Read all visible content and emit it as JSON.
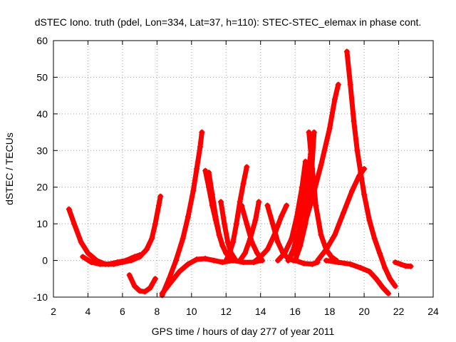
{
  "chart_data": {
    "type": "scatter",
    "title": "dSTEC Iono. truth (pdel, Lon=334, Lat=37, h=110): STEC-STEC_elemax in phase cont.",
    "xlabel": "GPS time / hours of day 277 of year 2011",
    "ylabel": "dSTEC  / TECUs",
    "xlim": [
      2,
      24
    ],
    "ylim": [
      -10,
      60
    ],
    "xticks": [
      2,
      4,
      6,
      8,
      10,
      12,
      14,
      16,
      18,
      20,
      22,
      24
    ],
    "yticks": [
      -10,
      0,
      10,
      20,
      30,
      40,
      50,
      60
    ],
    "grid": true,
    "marker": "+",
    "color": "#ff0000",
    "series": [
      {
        "x": [
          2.9,
          3.2,
          3.6,
          4.0,
          4.5,
          5.0,
          5.5,
          6.0,
          6.5,
          7.0,
          7.4,
          7.7,
          7.9,
          8.1,
          8.2
        ],
        "y": [
          14,
          10,
          5,
          2,
          0,
          -1,
          -1,
          -0.5,
          0,
          1,
          3,
          6,
          10,
          15,
          17.5
        ]
      },
      {
        "x": [
          3.7,
          4.2,
          4.7,
          5.2,
          5.7,
          6.2,
          6.7,
          7.0
        ],
        "y": [
          1,
          -0.5,
          -1,
          -1,
          -0.5,
          0,
          1,
          1.5
        ]
      },
      {
        "x": [
          6.4,
          6.7,
          7.0,
          7.3,
          7.6,
          7.9
        ],
        "y": [
          -4,
          -7,
          -8.3,
          -8.5,
          -7.5,
          -5
        ]
      },
      {
        "x": [
          8.3,
          8.7,
          9.1,
          9.5,
          9.8,
          10.1,
          10.3,
          10.5,
          10.6
        ],
        "y": [
          -9.5,
          -5,
          0,
          6,
          12,
          19,
          25,
          31,
          35
        ]
      },
      {
        "x": [
          8.3,
          8.8,
          9.3,
          9.8,
          10.3,
          10.8,
          11.3,
          11.8,
          12.4,
          13.0,
          13.6,
          14.0
        ],
        "y": [
          -9,
          -6,
          -3,
          -1,
          0.3,
          0.5,
          0,
          -0.5,
          0,
          -0.5,
          -0.5,
          0
        ]
      },
      {
        "x": [
          10.8,
          11.0,
          11.2,
          11.4,
          11.6,
          11.8,
          12.0,
          12.2,
          12.4
        ],
        "y": [
          24.5,
          20,
          15,
          11,
          7,
          4,
          2,
          1,
          0
        ]
      },
      {
        "x": [
          11.0,
          11.2,
          11.4,
          11.6,
          11.8,
          12.0,
          12.2
        ],
        "y": [
          24,
          18,
          12,
          7,
          4,
          2,
          1
        ]
      },
      {
        "x": [
          11.7,
          11.9,
          12.1,
          12.3,
          12.5
        ],
        "y": [
          16,
          10,
          5,
          2,
          0.5
        ]
      },
      {
        "x": [
          12.0,
          12.2,
          12.4,
          12.6,
          12.8,
          13.0,
          13.2
        ],
        "y": [
          0,
          2,
          5,
          10,
          16,
          21,
          25.5
        ]
      },
      {
        "x": [
          12.9,
          13.2,
          13.5,
          13.8,
          14.1
        ],
        "y": [
          15,
          10,
          5,
          2,
          0
        ]
      },
      {
        "x": [
          12.8,
          13.1,
          13.4,
          13.7,
          13.9
        ],
        "y": [
          0,
          2,
          6,
          11,
          16
        ]
      },
      {
        "x": [
          14.4,
          14.7,
          15.0,
          15.3,
          15.6,
          15.9
        ],
        "y": [
          15,
          10,
          5,
          2,
          0.5,
          0
        ]
      },
      {
        "x": [
          13.6,
          14.0,
          14.4,
          14.8,
          15.2,
          15.5
        ],
        "y": [
          -0.5,
          1,
          3,
          7,
          12,
          15
        ]
      },
      {
        "x": [
          15.0,
          15.4,
          15.8,
          16.1,
          16.4,
          16.6
        ],
        "y": [
          0,
          2,
          6,
          12,
          20,
          27
        ]
      },
      {
        "x": [
          15.6,
          15.9,
          16.2,
          16.5,
          16.7,
          16.9,
          17.0
        ],
        "y": [
          0,
          3,
          8,
          15,
          22,
          29,
          34
        ]
      },
      {
        "x": [
          16.0,
          16.3,
          16.6,
          16.9,
          17.1
        ],
        "y": [
          0,
          4,
          10,
          20,
          35
        ]
      },
      {
        "x": [
          16.8,
          17.0,
          17.2,
          17.5,
          17.8,
          18.1,
          18.4
        ],
        "y": [
          35,
          25,
          15,
          7,
          3,
          1,
          0
        ]
      },
      {
        "x": [
          15.6,
          16.0,
          16.5,
          17.0,
          17.5,
          18.0,
          18.3,
          18.5
        ],
        "y": [
          0,
          3,
          9,
          17,
          26,
          36,
          44,
          48
        ]
      },
      {
        "x": [
          16.0,
          16.5,
          17.0,
          17.3
        ],
        "y": [
          0,
          -0.8,
          -1,
          -0.5
        ]
      },
      {
        "x": [
          17.3,
          17.8,
          18.3,
          18.8,
          19.3,
          19.7,
          20.0
        ],
        "y": [
          0,
          3,
          7,
          13,
          19,
          23,
          25
        ]
      },
      {
        "x": [
          19.0,
          19.2,
          19.4,
          19.6,
          19.8,
          20.0,
          20.3,
          20.6,
          20.9,
          21.2,
          21.5,
          21.8
        ],
        "y": [
          57,
          48,
          38,
          30,
          24,
          18,
          11,
          6,
          2,
          -2,
          -5,
          -7
        ]
      },
      {
        "x": [
          17.8,
          18.5,
          19.2,
          19.8,
          20.3,
          20.7,
          21.1,
          21.4
        ],
        "y": [
          0,
          -0.5,
          -1,
          -2,
          -3,
          -5,
          -7.5,
          -9
        ]
      },
      {
        "x": [
          21.8,
          22.1,
          22.4,
          22.7
        ],
        "y": [
          -0.5,
          -1,
          -1.5,
          -1.6
        ]
      }
    ]
  }
}
